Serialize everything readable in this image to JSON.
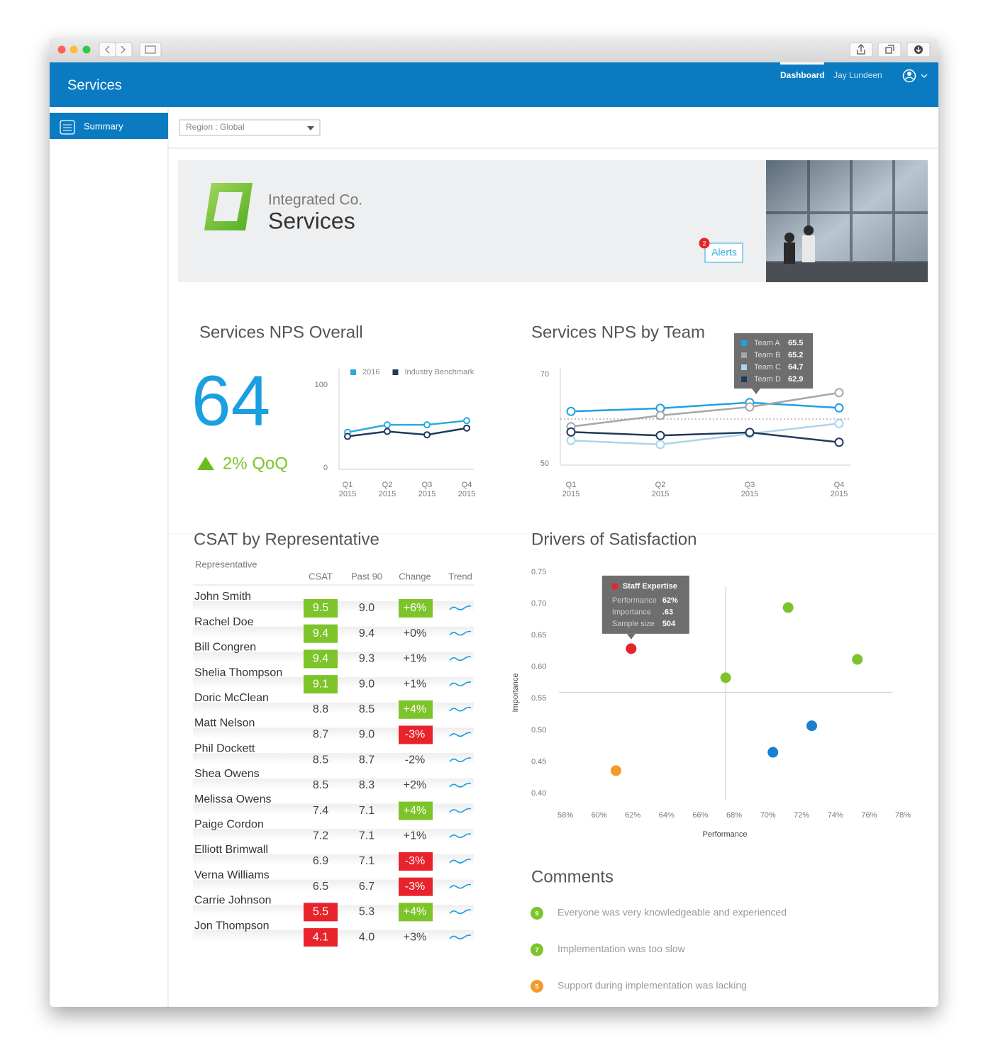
{
  "header": {
    "title": "Services",
    "nav": [
      "Dashboard",
      "Jay Lundeen"
    ]
  },
  "sidebar": {
    "items": [
      "Summary"
    ]
  },
  "filter": {
    "region": "Region : Global"
  },
  "banner": {
    "company": "Integrated Co.",
    "title": "Services",
    "alerts": {
      "label": "Alerts",
      "count": 2
    }
  },
  "chart_data": [
    {
      "type": "line",
      "title": "Services NPS Overall",
      "kpi": {
        "value": 64,
        "change": "2% QoQ"
      },
      "categories": [
        [
          "Q1",
          "2015"
        ],
        [
          "Q2",
          "2015"
        ],
        [
          "Q3",
          "2015"
        ],
        [
          "Q4",
          "2015"
        ]
      ],
      "series": [
        {
          "name": "2016",
          "color": "#29abe2",
          "values": [
            43,
            52,
            52,
            57
          ]
        },
        {
          "name": "Industry Benchmark",
          "color": "#1f3a5c",
          "values": [
            38,
            44,
            40,
            48
          ]
        }
      ],
      "ylim": [
        0,
        100
      ],
      "yticks": [
        0,
        100
      ]
    },
    {
      "type": "line",
      "title": "Services NPS by Team",
      "categories": [
        [
          "Q1",
          "2015"
        ],
        [
          "Q2",
          "2015"
        ],
        [
          "Q3",
          "2015"
        ],
        [
          "Q4",
          "2015"
        ]
      ],
      "series": [
        {
          "name": "Team A",
          "color": "#1da1e6",
          "values": [
            61.7,
            62.4,
            63.7,
            62.5
          ]
        },
        {
          "name": "Team B",
          "color": "#a6a6a6",
          "values": [
            58.3,
            60.8,
            62.7,
            65.9
          ]
        },
        {
          "name": "Team C",
          "color": "#a9d5ec",
          "values": [
            55.2,
            54.3,
            56.7,
            59.0
          ]
        },
        {
          "name": "Team D",
          "color": "#1f3a5c",
          "values": [
            57.1,
            56.3,
            57.0,
            54.8
          ]
        }
      ],
      "tooltip_values": [
        65.5,
        65.2,
        64.7,
        62.9
      ],
      "reference_line": 60,
      "ylim": [
        50,
        70
      ],
      "yticks": [
        50,
        70
      ]
    },
    {
      "type": "scatter",
      "title": "Drivers of Satisfaction",
      "x_label": "Performance",
      "y_label": "Importance",
      "x": [
        61.9,
        71.2,
        75.3,
        67.5,
        72.6,
        70.3,
        61.0
      ],
      "y": [
        0.629,
        0.694,
        0.612,
        0.583,
        0.507,
        0.465,
        0.436
      ],
      "colors": [
        "#e8232b",
        "#7dc42b",
        "#7dc42b",
        "#7dc42b",
        "#1a7fd0",
        "#1a7fd0",
        "#f39a2b"
      ],
      "crosshair_x": 67.5,
      "crosshair_y": 0.56,
      "tooltip": {
        "title": "Staff Expertise",
        "rows": [
          [
            "Performance",
            "62%"
          ],
          [
            "Importance",
            ".63"
          ],
          [
            "Sample size",
            "504"
          ]
        ]
      },
      "xlim": [
        58,
        78
      ],
      "xticks": [
        {
          "value": 58,
          "label": "58%"
        },
        {
          "value": 60,
          "label": "60%"
        },
        {
          "value": 62,
          "label": "62%"
        },
        {
          "value": 64,
          "label": "64%"
        },
        {
          "value": 66,
          "label": "66%"
        },
        {
          "value": 68,
          "label": "68%"
        },
        {
          "value": 70,
          "label": "70%"
        },
        {
          "value": 72,
          "label": "72%"
        },
        {
          "value": 74,
          "label": "74%"
        },
        {
          "value": 76,
          "label": "76%"
        },
        {
          "value": 78,
          "label": "78%"
        }
      ],
      "ylim": [
        0.4,
        0.75
      ],
      "yticks": [
        {
          "value": 0.4,
          "label": "0.40"
        },
        0.45,
        {
          "value": 0.5,
          "label": "0.50"
        },
        0.55,
        {
          "value": 0.6,
          "label": "0.60"
        },
        0.65,
        {
          "value": 0.7,
          "label": "0.70"
        },
        0.75
      ]
    }
  ],
  "csat": {
    "title": "CSAT by Representative",
    "columns": [
      "Representative",
      "CSAT",
      "Past 90",
      "Change",
      "Trend"
    ],
    "rows": [
      [
        "John Smith",
        "9.5",
        "9.0",
        "+6%"
      ],
      [
        "Rachel Doe",
        "9.4",
        "9.4",
        "+0%"
      ],
      [
        "Bill Congren",
        "9.4",
        "9.3",
        "+1%"
      ],
      [
        "Shelia Thompson",
        "9.1",
        "9.0",
        "+1%"
      ],
      [
        "Doric McClean",
        "8.8",
        "8.5",
        "+4%"
      ],
      [
        "Matt Nelson",
        "8.7",
        "9.0",
        "-3%"
      ],
      [
        "Phil Dockett",
        "8.5",
        "8.7",
        "-2%"
      ],
      [
        "Shea Owens",
        "8.5",
        "8.3",
        "+2%"
      ],
      [
        "Melissa Owens",
        "7.4",
        "7.1",
        "+4%"
      ],
      [
        "Paige Cordon",
        "7.2",
        "7.1",
        "+1%"
      ],
      [
        "Elliott Brimwall",
        "6.9",
        "7.1",
        "-3%"
      ],
      [
        "Verna Williams",
        "6.5",
        "6.7",
        "-3%"
      ],
      [
        "Carrie Johnson",
        "5.5",
        "5.3",
        "+4%"
      ],
      [
        "Jon Thompson",
        "4.1",
        "4.0",
        "+3%"
      ]
    ],
    "csat_highlight": [
      "#7dc42b",
      "#7dc42b",
      "#7dc42b",
      "#7dc42b",
      null,
      null,
      null,
      null,
      null,
      null,
      null,
      null,
      "#e8232b",
      "#e8232b"
    ],
    "change_highlight": [
      "#7dc42b",
      null,
      null,
      null,
      "#7dc42b",
      "#e8232b",
      null,
      null,
      "#7dc42b",
      null,
      "#e8232b",
      "#e8232b",
      "#7dc42b",
      null
    ]
  },
  "comments": {
    "title": "Comments",
    "items": [
      {
        "score": 9,
        "color": "#7dc42b",
        "text": "Everyone was very knowledgeable and experienced"
      },
      {
        "score": 7,
        "color": "#7dc42b",
        "text": "Implementation was too slow"
      },
      {
        "score": 5,
        "color": "#f39a2b",
        "text": "Support during implementation was lacking"
      }
    ]
  }
}
